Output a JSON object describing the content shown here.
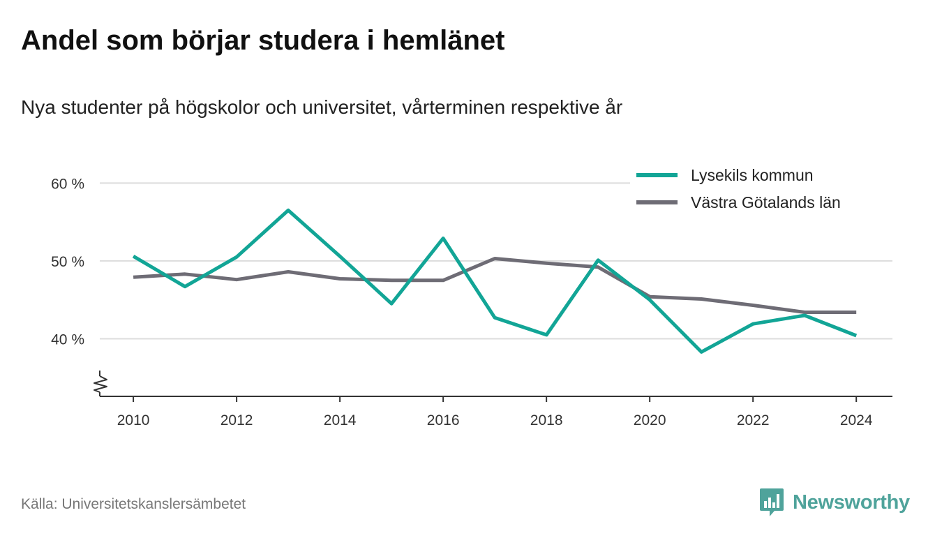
{
  "title": "Andel som börjar studera i hemlänet",
  "subtitle": "Nya studenter på högskolor och universitet, vårterminen respektive år",
  "source": "Källa: Universitetskanslersämbetet",
  "brand": {
    "name": "Newsworthy",
    "icon": "newsworthy-logo-icon",
    "color": "#4fa39b"
  },
  "chart_data": {
    "type": "line",
    "x": [
      2010,
      2011,
      2012,
      2013,
      2014,
      2015,
      2016,
      2017,
      2018,
      2019,
      2020,
      2021,
      2022,
      2023,
      2024
    ],
    "series": [
      {
        "name": "Lysekils kommun",
        "color": "#12a596",
        "values": [
          50.6,
          46.7,
          50.5,
          56.5,
          50.6,
          44.5,
          52.9,
          42.7,
          40.5,
          50.1,
          45.0,
          38.3,
          41.9,
          43.0,
          40.4
        ]
      },
      {
        "name": "Västra Götalands län",
        "color": "#6e6c75",
        "values": [
          47.9,
          48.3,
          47.6,
          48.6,
          47.7,
          47.5,
          47.5,
          50.3,
          49.7,
          49.2,
          45.4,
          45.1,
          44.3,
          43.4,
          43.4
        ]
      }
    ],
    "ylim": [
      32.6,
      62
    ],
    "yticks": [
      40,
      50,
      60
    ],
    "ytick_labels": [
      "40 %",
      "50 %",
      "60 %"
    ],
    "xticks": [
      2010,
      2012,
      2014,
      2016,
      2018,
      2020,
      2022,
      2024
    ],
    "xlim": [
      2009.35,
      2024.7
    ],
    "grid": true,
    "y_axis_break": true,
    "legend": "top-right"
  }
}
